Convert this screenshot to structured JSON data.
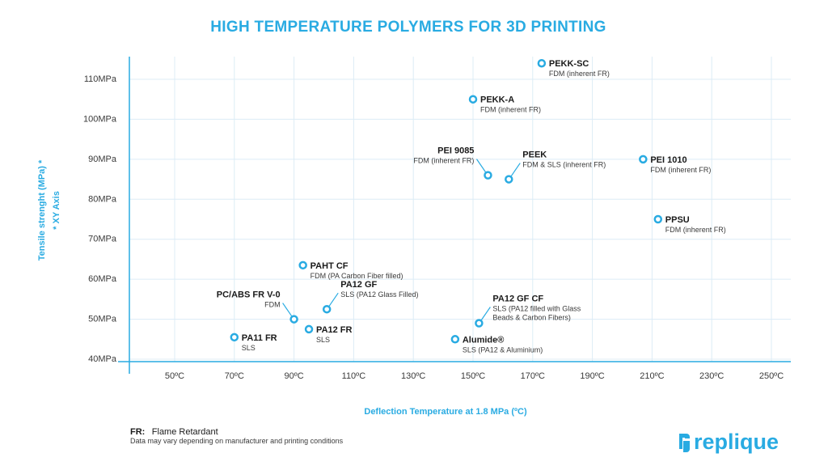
{
  "chart_data": {
    "type": "scatter",
    "title": "HIGH TEMPERATURE POLYMERS FOR 3D PRINTING",
    "xlabel": "Deflection Temperature at 1.8 MPa (ºC)",
    "ylabel": "Tensile strenght (MPa) *",
    "ylabel_note": "* XY Axis",
    "xlim": [
      30,
      260
    ],
    "ylim": [
      40,
      117
    ],
    "x_ticks": [
      50,
      70,
      90,
      110,
      130,
      150,
      170,
      190,
      210,
      230,
      250
    ],
    "x_tick_labels": [
      "50ºC",
      "70ºC",
      "90ºC",
      "110ºC",
      "130ºC",
      "150ºC",
      "170ºC",
      "190ºC",
      "210ºC",
      "230ºC",
      "250ºC"
    ],
    "y_ticks": [
      40,
      50,
      60,
      70,
      80,
      90,
      100,
      110
    ],
    "y_tick_labels": [
      "40MPa",
      "50MPa",
      "60MPa",
      "70MPa",
      "80MPa",
      "90MPa",
      "100MPa",
      "110MPa"
    ],
    "grid": true,
    "marker_color": "#29abe2",
    "points": [
      {
        "name": "PEKK-SC",
        "process": "FDM (inherent FR)",
        "x": 173,
        "y": 114,
        "label_side": "right"
      },
      {
        "name": "PEKK-A",
        "process": "FDM (inherent FR)",
        "x": 150,
        "y": 105,
        "label_side": "right"
      },
      {
        "name": "PEI 9085",
        "process": "FDM (inherent FR)",
        "x": 155,
        "y": 86,
        "label_side": "left-leader"
      },
      {
        "name": "PEEK",
        "process": "FDM & SLS (inherent FR)",
        "x": 162,
        "y": 85,
        "label_side": "right-leader"
      },
      {
        "name": "PEI 1010",
        "process": "FDM (inherent FR)",
        "x": 207,
        "y": 90,
        "label_side": "right"
      },
      {
        "name": "PPSU",
        "process": "FDM  (inherent FR)",
        "x": 212,
        "y": 75,
        "label_side": "right"
      },
      {
        "name": "PAHT CF",
        "process": "FDM (PA Carbon Fiber filled)",
        "x": 93,
        "y": 63.5,
        "label_side": "right"
      },
      {
        "name": "PA12 GF",
        "process": "SLS (PA12 Glass Filled)",
        "x": 101,
        "y": 52.5,
        "label_side": "right-leader"
      },
      {
        "name": "PC/ABS FR V-0",
        "process": "FDM",
        "x": 90,
        "y": 50,
        "label_side": "left-leader"
      },
      {
        "name": "PA12 FR",
        "process": "SLS",
        "x": 95,
        "y": 47.5,
        "label_side": "right"
      },
      {
        "name": "PA11 FR",
        "process": "SLS",
        "x": 70,
        "y": 45.5,
        "label_side": "right"
      },
      {
        "name": "PA12 GF CF",
        "process": "SLS (PA12 filled with Glass Beads & Carbon Fibers)",
        "process_lines": [
          "SLS (PA12 filled with Glass",
          "Beads & Carbon Fibers)"
        ],
        "x": 152,
        "y": 49,
        "label_side": "right-leader"
      },
      {
        "name": "Alumide®",
        "process": "SLS (PA12 & Aluminium)",
        "x": 144,
        "y": 45,
        "label_side": "right"
      }
    ]
  },
  "footer": {
    "note_bold": "FR:",
    "note_text": "Flame Retardant",
    "disclaimer": "Data may vary depending on manufacturer and printing conditions"
  },
  "logo": {
    "text": "replique",
    "color": "#29abe2"
  }
}
